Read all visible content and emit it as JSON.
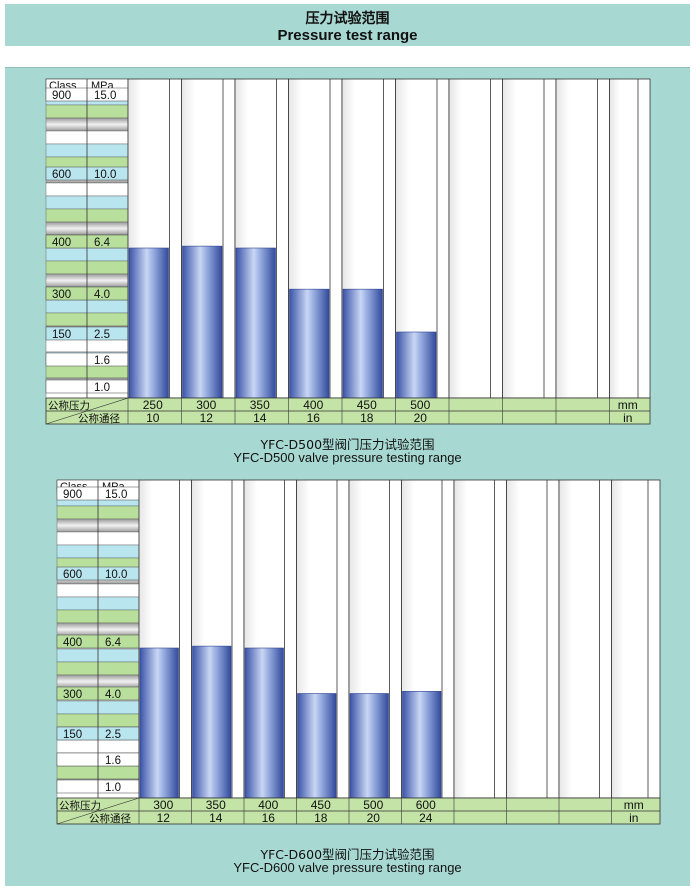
{
  "page": {
    "title_cn": "压力试验范围",
    "title_en": "Pressure test range"
  },
  "colors": {
    "panel_bg": "#a8d8d2",
    "bar_fill": "#4a67bd",
    "row_green": "#b8e09c",
    "row_cyan": "#b9e5ef",
    "row_gray": "#c9c9c9",
    "footer_green": "#c3e3a7"
  },
  "chart_data": [
    {
      "type": "bar",
      "caption_cn": "YFC-D500型阀门压力试验范围",
      "caption_en": "YFC-D500 valve pressure testing range",
      "class_header": "Class",
      "mpa_header": "MPa",
      "y_ticks": [
        {
          "class": "900",
          "mpa": "15.0"
        },
        {
          "class": "600",
          "mpa": "10.0"
        },
        {
          "class": "400",
          "mpa": "6.4"
        },
        {
          "class": "300",
          "mpa": "4.0"
        },
        {
          "class": "150",
          "mpa": "2.5"
        },
        {
          "class": "",
          "mpa": "1.6"
        },
        {
          "class": "",
          "mpa": "1.0"
        }
      ],
      "row1_label": "公称压力",
      "row2_label": "公称通径",
      "categories_mm": [
        "250",
        "300",
        "350",
        "400",
        "450",
        "500",
        "",
        "",
        "",
        ""
      ],
      "categories_in": [
        "10",
        "12",
        "14",
        "16",
        "18",
        "20",
        "",
        "",
        "",
        ""
      ],
      "unit_mm": "mm",
      "unit_in": "in",
      "values_mpa": [
        6.4,
        6.5,
        6.4,
        4.5,
        4.5,
        2.8
      ],
      "ylim_mpa": [
        1.0,
        15.0
      ]
    },
    {
      "type": "bar",
      "caption_cn": "YFC-D600型阀门压力试验范围",
      "caption_en": "YFC-D600 valve pressure testing range",
      "class_header": "Class",
      "mpa_header": "MPa",
      "y_ticks": [
        {
          "class": "900",
          "mpa": "15.0"
        },
        {
          "class": "600",
          "mpa": "10.0"
        },
        {
          "class": "400",
          "mpa": "6.4"
        },
        {
          "class": "300",
          "mpa": "4.0"
        },
        {
          "class": "150",
          "mpa": "2.5"
        },
        {
          "class": "",
          "mpa": "1.6"
        },
        {
          "class": "",
          "mpa": "1.0"
        }
      ],
      "row1_label": "公称压力",
      "row2_label": "公称通径",
      "categories_mm": [
        "300",
        "350",
        "400",
        "450",
        "500",
        "600",
        "",
        "",
        "",
        ""
      ],
      "categories_in": [
        "12",
        "14",
        "16",
        "18",
        "20",
        "24",
        "",
        "",
        "",
        ""
      ],
      "unit_mm": "mm",
      "unit_in": "in",
      "values_mpa": [
        6.4,
        6.5,
        6.4,
        4.3,
        4.3,
        4.4
      ],
      "ylim_mpa": [
        1.0,
        15.0
      ]
    }
  ]
}
